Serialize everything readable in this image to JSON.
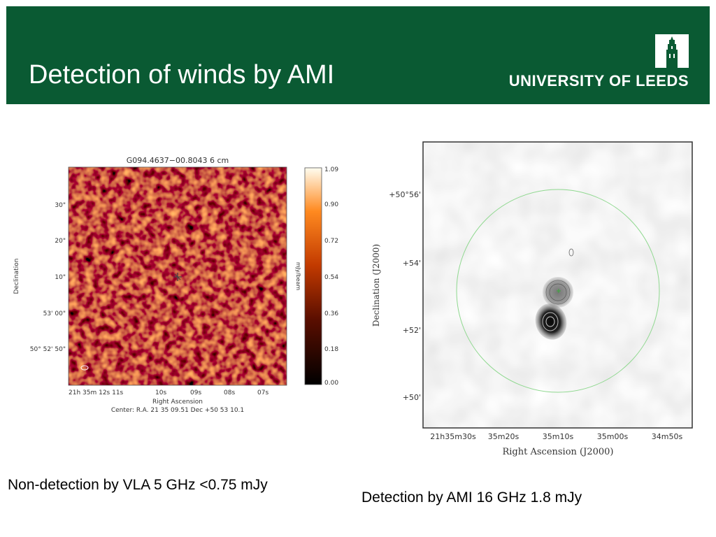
{
  "header": {
    "title": "Detection of winds by AMI",
    "university": "UNIVERSITY OF LEEDS",
    "bg_color": "#0a5a33"
  },
  "left_figure": {
    "title": "G094.4637−00.8043 6 cm",
    "y_axis_label": "Declination",
    "x_axis_label": "Right Ascension",
    "colorbar_label": "mJy/beam",
    "y_ticks": [
      "30\"",
      "20\"",
      "10\"",
      "53' 00\"",
      "50° 52' 50\""
    ],
    "x_ticks": [
      "21h 35m 12s 11s",
      "10s",
      "09s",
      "08s",
      "07s"
    ],
    "colorbar_ticks": [
      "1.09",
      "0.90",
      "0.72",
      "0.54",
      "0.36",
      "0.18",
      "0.00"
    ],
    "center_line": "Center:  R.A. 21 35 09.51    Dec  +50 53 10.1"
  },
  "right_figure": {
    "y_axis_label": "Declination (J2000)",
    "x_axis_label": "Right Ascension (J2000)",
    "y_ticks": [
      "+50°56'",
      "+54'",
      "+52'",
      "+50'"
    ],
    "x_ticks": [
      "21h35m30s",
      "35m20s",
      "35m10s",
      "35m00s",
      "34m50s"
    ]
  },
  "captions": {
    "left": "Non-detection by VLA 5 GHz <0.75 mJy",
    "right": "Detection by AMI 16 GHz 1.8 mJy"
  }
}
